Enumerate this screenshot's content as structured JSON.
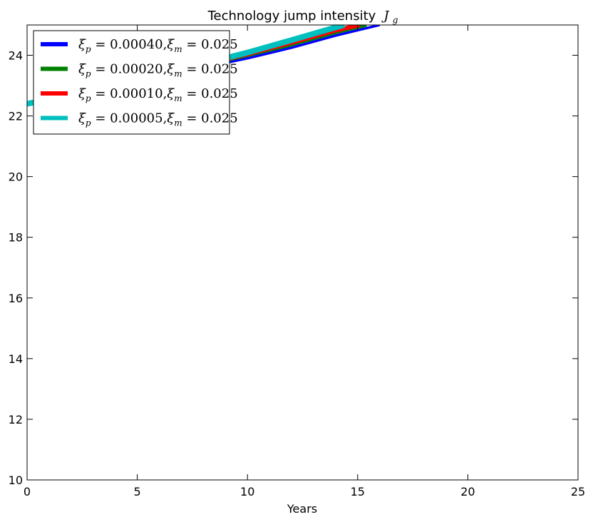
{
  "chart_data": {
    "type": "line",
    "title": "Technology jump intensity",
    "title_math": "J",
    "title_math_sub": "g",
    "xlabel": "Years",
    "ylabel": "",
    "xlim": [
      0,
      25
    ],
    "ylim": [
      10,
      25
    ],
    "xticks": [
      0,
      5,
      10,
      15,
      20,
      25
    ],
    "yticks": [
      10,
      12,
      14,
      16,
      18,
      20,
      22,
      24
    ],
    "grid": false,
    "legend_position": "top-left",
    "series": [
      {
        "name": "ξp=0.00040,ξm=0.025",
        "color": "#0000ff",
        "x": [
          0,
          2,
          4,
          6,
          8,
          10,
          12,
          14,
          16
        ],
        "y": [
          22.4,
          22.7,
          23.0,
          23.3,
          23.6,
          23.9,
          24.25,
          24.65,
          25.0
        ]
      },
      {
        "name": "ξp=0.00020,ξm=0.025",
        "color": "#008000",
        "x": [
          0,
          2,
          4,
          6,
          8,
          10,
          12,
          14,
          15.4
        ],
        "y": [
          22.4,
          22.7,
          23.0,
          23.32,
          23.66,
          24.0,
          24.35,
          24.75,
          25.0
        ]
      },
      {
        "name": "ξp=0.00010,ξm=0.025",
        "color": "#ff0000",
        "x": [
          0,
          2,
          4,
          6,
          8,
          10,
          12,
          14,
          15.1
        ],
        "y": [
          22.4,
          22.7,
          23.02,
          23.35,
          23.69,
          24.04,
          24.42,
          24.82,
          25.0
        ]
      },
      {
        "name": "ξp=0.00005,ξm=0.025",
        "color": "#00bfbf",
        "x": [
          0,
          2,
          4,
          6,
          8,
          10,
          12,
          14,
          14.4
        ],
        "y": [
          22.4,
          22.7,
          23.03,
          23.37,
          23.72,
          24.09,
          24.5,
          24.92,
          25.0
        ]
      }
    ],
    "legend": [
      {
        "prefix": "ξ",
        "sub1": "p",
        "mid": " = 0.00040,",
        "prefix2": "ξ",
        "sub2": "m",
        "end": " = 0.025"
      },
      {
        "prefix": "ξ",
        "sub1": "p",
        "mid": " = 0.00020,",
        "prefix2": "ξ",
        "sub2": "m",
        "end": " = 0.025"
      },
      {
        "prefix": "ξ",
        "sub1": "p",
        "mid": " = 0.00010,",
        "prefix2": "ξ",
        "sub2": "m",
        "end": " = 0.025"
      },
      {
        "prefix": "ξ",
        "sub1": "p",
        "mid": " = 0.00005,",
        "prefix2": "ξ",
        "sub2": "m",
        "end": " = 0.025"
      }
    ]
  }
}
